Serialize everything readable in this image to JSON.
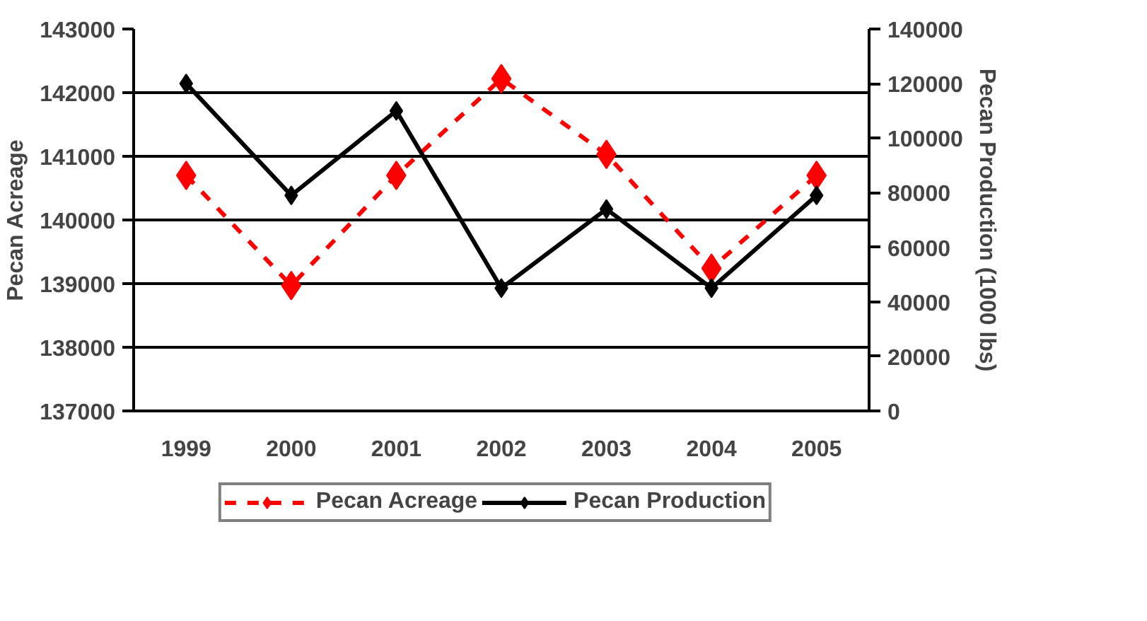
{
  "chart_data": {
    "type": "line",
    "categories": [
      "1999",
      "2000",
      "2001",
      "2002",
      "2003",
      "2004",
      "2005"
    ],
    "ylabel": "Pecan Acreage",
    "y2label": "Pecan Production (1000 lbs)",
    "ylim": [
      137000,
      143000
    ],
    "yticks": [
      137000,
      138000,
      139000,
      140000,
      141000,
      142000,
      143000
    ],
    "y2lim": [
      0,
      140000
    ],
    "y2ticks": [
      0,
      20000,
      40000,
      60000,
      80000,
      100000,
      120000,
      140000
    ],
    "grid": "y",
    "legend": "bottom",
    "series": [
      {
        "name": "Pecan Acreage",
        "color": "#ff0000",
        "line_style": "dashed",
        "marker": "diamond",
        "values": [
          140700,
          138970,
          140700,
          142220,
          141030,
          139240,
          140700
        ]
      },
      {
        "name": "Pecan Production",
        "color": "#000000",
        "line_style": "solid",
        "marker": "diamond",
        "axis": "y2",
        "values": [
          120000,
          79000,
          110000,
          45000,
          74000,
          45000,
          79000
        ]
      }
    ]
  }
}
